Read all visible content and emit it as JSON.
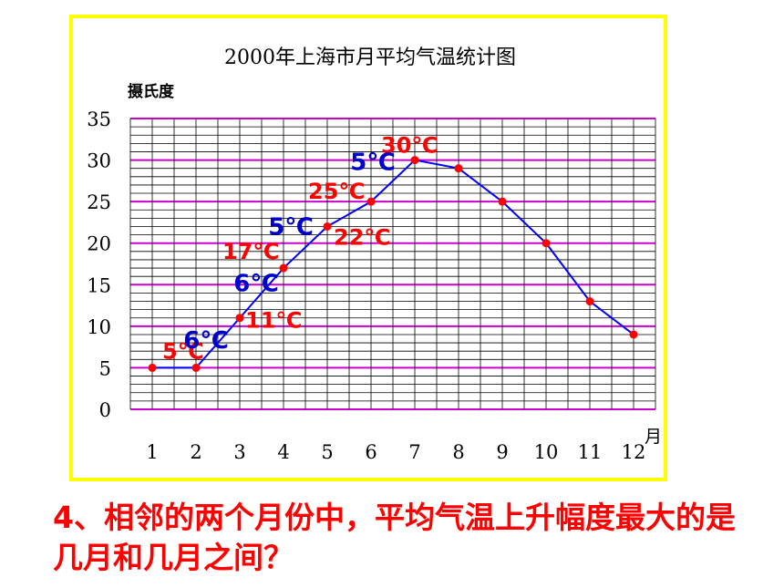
{
  "colors": {
    "frame": "#ffff00",
    "line": "#0000ff",
    "marker": "#ff0000",
    "major_grid": "#cc00cc",
    "minor_grid": "#000000",
    "red_text": "#ff0000",
    "blue_text": "#0000cc"
  },
  "chart_data": {
    "type": "line",
    "title": "2000年上海市月平均气温统计图",
    "ylabel": "摄氏度",
    "xlabel": "月",
    "categories": [
      "1",
      "2",
      "3",
      "4",
      "5",
      "6",
      "7",
      "8",
      "9",
      "10",
      "11",
      "12"
    ],
    "x": [
      1,
      2,
      3,
      4,
      5,
      6,
      7,
      8,
      9,
      10,
      11,
      12
    ],
    "values": [
      5,
      5,
      11,
      17,
      22,
      25,
      30,
      29,
      25,
      20,
      13,
      9
    ],
    "ylim": [
      0,
      35
    ],
    "yticks": [
      "0",
      "5",
      "10",
      "15",
      "20",
      "25",
      "30",
      "35"
    ],
    "grid": true,
    "annotations": {
      "values": [
        {
          "text": "5℃",
          "month": 2,
          "color": "red"
        },
        {
          "text": "11℃",
          "month": 3,
          "color": "red"
        },
        {
          "text": "17℃",
          "month": 4,
          "color": "red"
        },
        {
          "text": "22℃",
          "month": 5,
          "color": "red"
        },
        {
          "text": "25℃",
          "month": 6,
          "color": "red"
        },
        {
          "text": "30℃",
          "month": 7,
          "color": "red"
        }
      ],
      "differences": [
        {
          "text": "6℃",
          "from": 2,
          "to": 3,
          "color": "blue"
        },
        {
          "text": "6℃",
          "from": 3,
          "to": 4,
          "color": "blue"
        },
        {
          "text": "5℃",
          "from": 4,
          "to": 5,
          "color": "blue"
        },
        {
          "text": "5℃",
          "from": 6,
          "to": 7,
          "color": "blue"
        }
      ]
    }
  },
  "question": {
    "text": "4、相邻的两个月份中，平均气温上升幅度最大的是几月和几月之间？"
  }
}
